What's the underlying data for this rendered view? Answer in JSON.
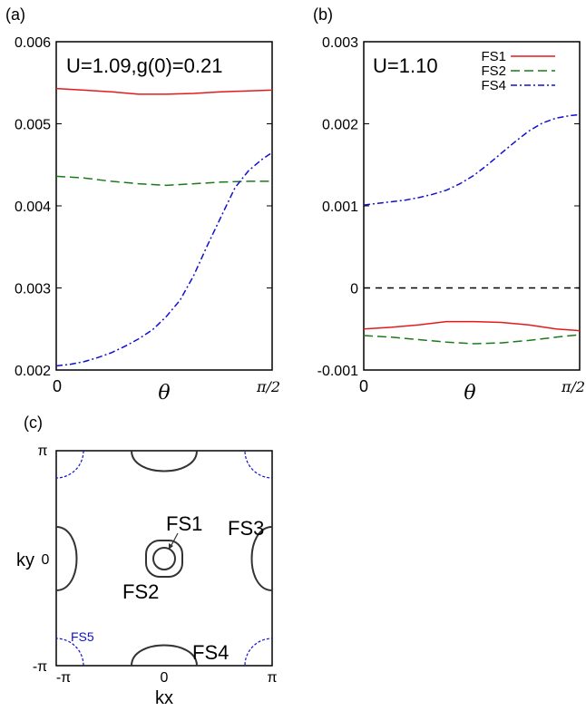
{
  "chart_data": [
    {
      "panel_label": "(a)",
      "type": "line",
      "annotation": "U=1.09,g(0)=0.21",
      "xlim": [
        0,
        1.5708
      ],
      "ylim": [
        0.002,
        0.006
      ],
      "yticks": [
        "0.002",
        "0.003",
        "0.004",
        "0.005",
        "0.006"
      ],
      "yticks_values": [
        0.002,
        0.003,
        0.004,
        0.005,
        0.006
      ],
      "xtick_labels": [
        "0",
        "π/2"
      ],
      "xlabel": "θ",
      "series": [
        {
          "color": "#e41a1c",
          "dash": "solid",
          "x": [
            0,
            0.2,
            0.4,
            0.6,
            0.8,
            1.0,
            1.2,
            1.4,
            1.5708
          ],
          "y": [
            0.00543,
            0.00541,
            0.00539,
            0.00536,
            0.00536,
            0.00537,
            0.00539,
            0.0054,
            0.00541
          ]
        },
        {
          "color": "#1a7a1a",
          "dash": "dashed",
          "x": [
            0,
            0.2,
            0.4,
            0.6,
            0.8,
            1.0,
            1.2,
            1.4,
            1.5708
          ],
          "y": [
            0.00436,
            0.00434,
            0.0043,
            0.00427,
            0.00425,
            0.00427,
            0.00429,
            0.0043,
            0.0043
          ]
        },
        {
          "color": "#1010d0",
          "dash": "dashdot",
          "x": [
            0,
            0.1,
            0.2,
            0.3,
            0.4,
            0.5,
            0.6,
            0.7,
            0.8,
            0.9,
            1.0,
            1.1,
            1.2,
            1.3,
            1.4,
            1.5,
            1.5708
          ],
          "y": [
            0.00205,
            0.00207,
            0.0021,
            0.00215,
            0.00221,
            0.00229,
            0.00238,
            0.00249,
            0.00265,
            0.00285,
            0.00315,
            0.00352,
            0.00387,
            0.00422,
            0.00443,
            0.00457,
            0.00465
          ]
        }
      ]
    },
    {
      "panel_label": "(b)",
      "type": "line",
      "annotation": "U=1.10",
      "xlim": [
        0,
        1.5708
      ],
      "ylim": [
        -0.001,
        0.003
      ],
      "yticks": [
        "-0.001",
        "0",
        "0.001",
        "0.002",
        "0.003"
      ],
      "yticks_values": [
        -0.001,
        0,
        0.001,
        0.002,
        0.003
      ],
      "xtick_labels": [
        "0",
        "π/2"
      ],
      "xlabel": "θ",
      "zero_line": true,
      "legend": [
        "FS1",
        "FS2",
        "FS4"
      ],
      "series": [
        {
          "name": "FS1",
          "color": "#e41a1c",
          "dash": "solid",
          "x": [
            0,
            0.2,
            0.4,
            0.6,
            0.8,
            1.0,
            1.2,
            1.4,
            1.5708
          ],
          "y": [
            -0.0005,
            -0.00048,
            -0.00045,
            -0.00041,
            -0.00041,
            -0.00042,
            -0.00045,
            -0.0005,
            -0.00052
          ]
        },
        {
          "name": "FS2",
          "color": "#1a7a1a",
          "dash": "dashed",
          "x": [
            0,
            0.2,
            0.4,
            0.6,
            0.8,
            1.0,
            1.2,
            1.4,
            1.5708
          ],
          "y": [
            -0.00058,
            -0.0006,
            -0.00063,
            -0.00066,
            -0.00068,
            -0.00067,
            -0.00064,
            -0.0006,
            -0.00057
          ]
        },
        {
          "name": "FS4",
          "color": "#1010d0",
          "dash": "dashdot",
          "x": [
            0,
            0.1,
            0.2,
            0.3,
            0.4,
            0.5,
            0.6,
            0.7,
            0.8,
            0.9,
            1.0,
            1.1,
            1.2,
            1.3,
            1.4,
            1.5,
            1.5708
          ],
          "y": [
            0.00101,
            0.00103,
            0.00105,
            0.00107,
            0.0011,
            0.00114,
            0.00119,
            0.00127,
            0.00137,
            0.0015,
            0.00164,
            0.00178,
            0.00191,
            0.00201,
            0.00207,
            0.0021,
            0.00211
          ]
        }
      ]
    }
  ],
  "fermi_surface": {
    "panel_label": "(c)",
    "ylabel": "ky",
    "xlabel": "kx",
    "xticks": [
      "-π",
      "0",
      "π"
    ],
    "yticks": [
      "-π",
      "0",
      "π"
    ],
    "labels": {
      "fs1": "FS1",
      "fs2": "FS2",
      "fs3": "FS3",
      "fs4": "FS4",
      "fs5": "FS5"
    },
    "colors": {
      "fs_main": "#000000",
      "fs5": "#1010d0"
    }
  }
}
